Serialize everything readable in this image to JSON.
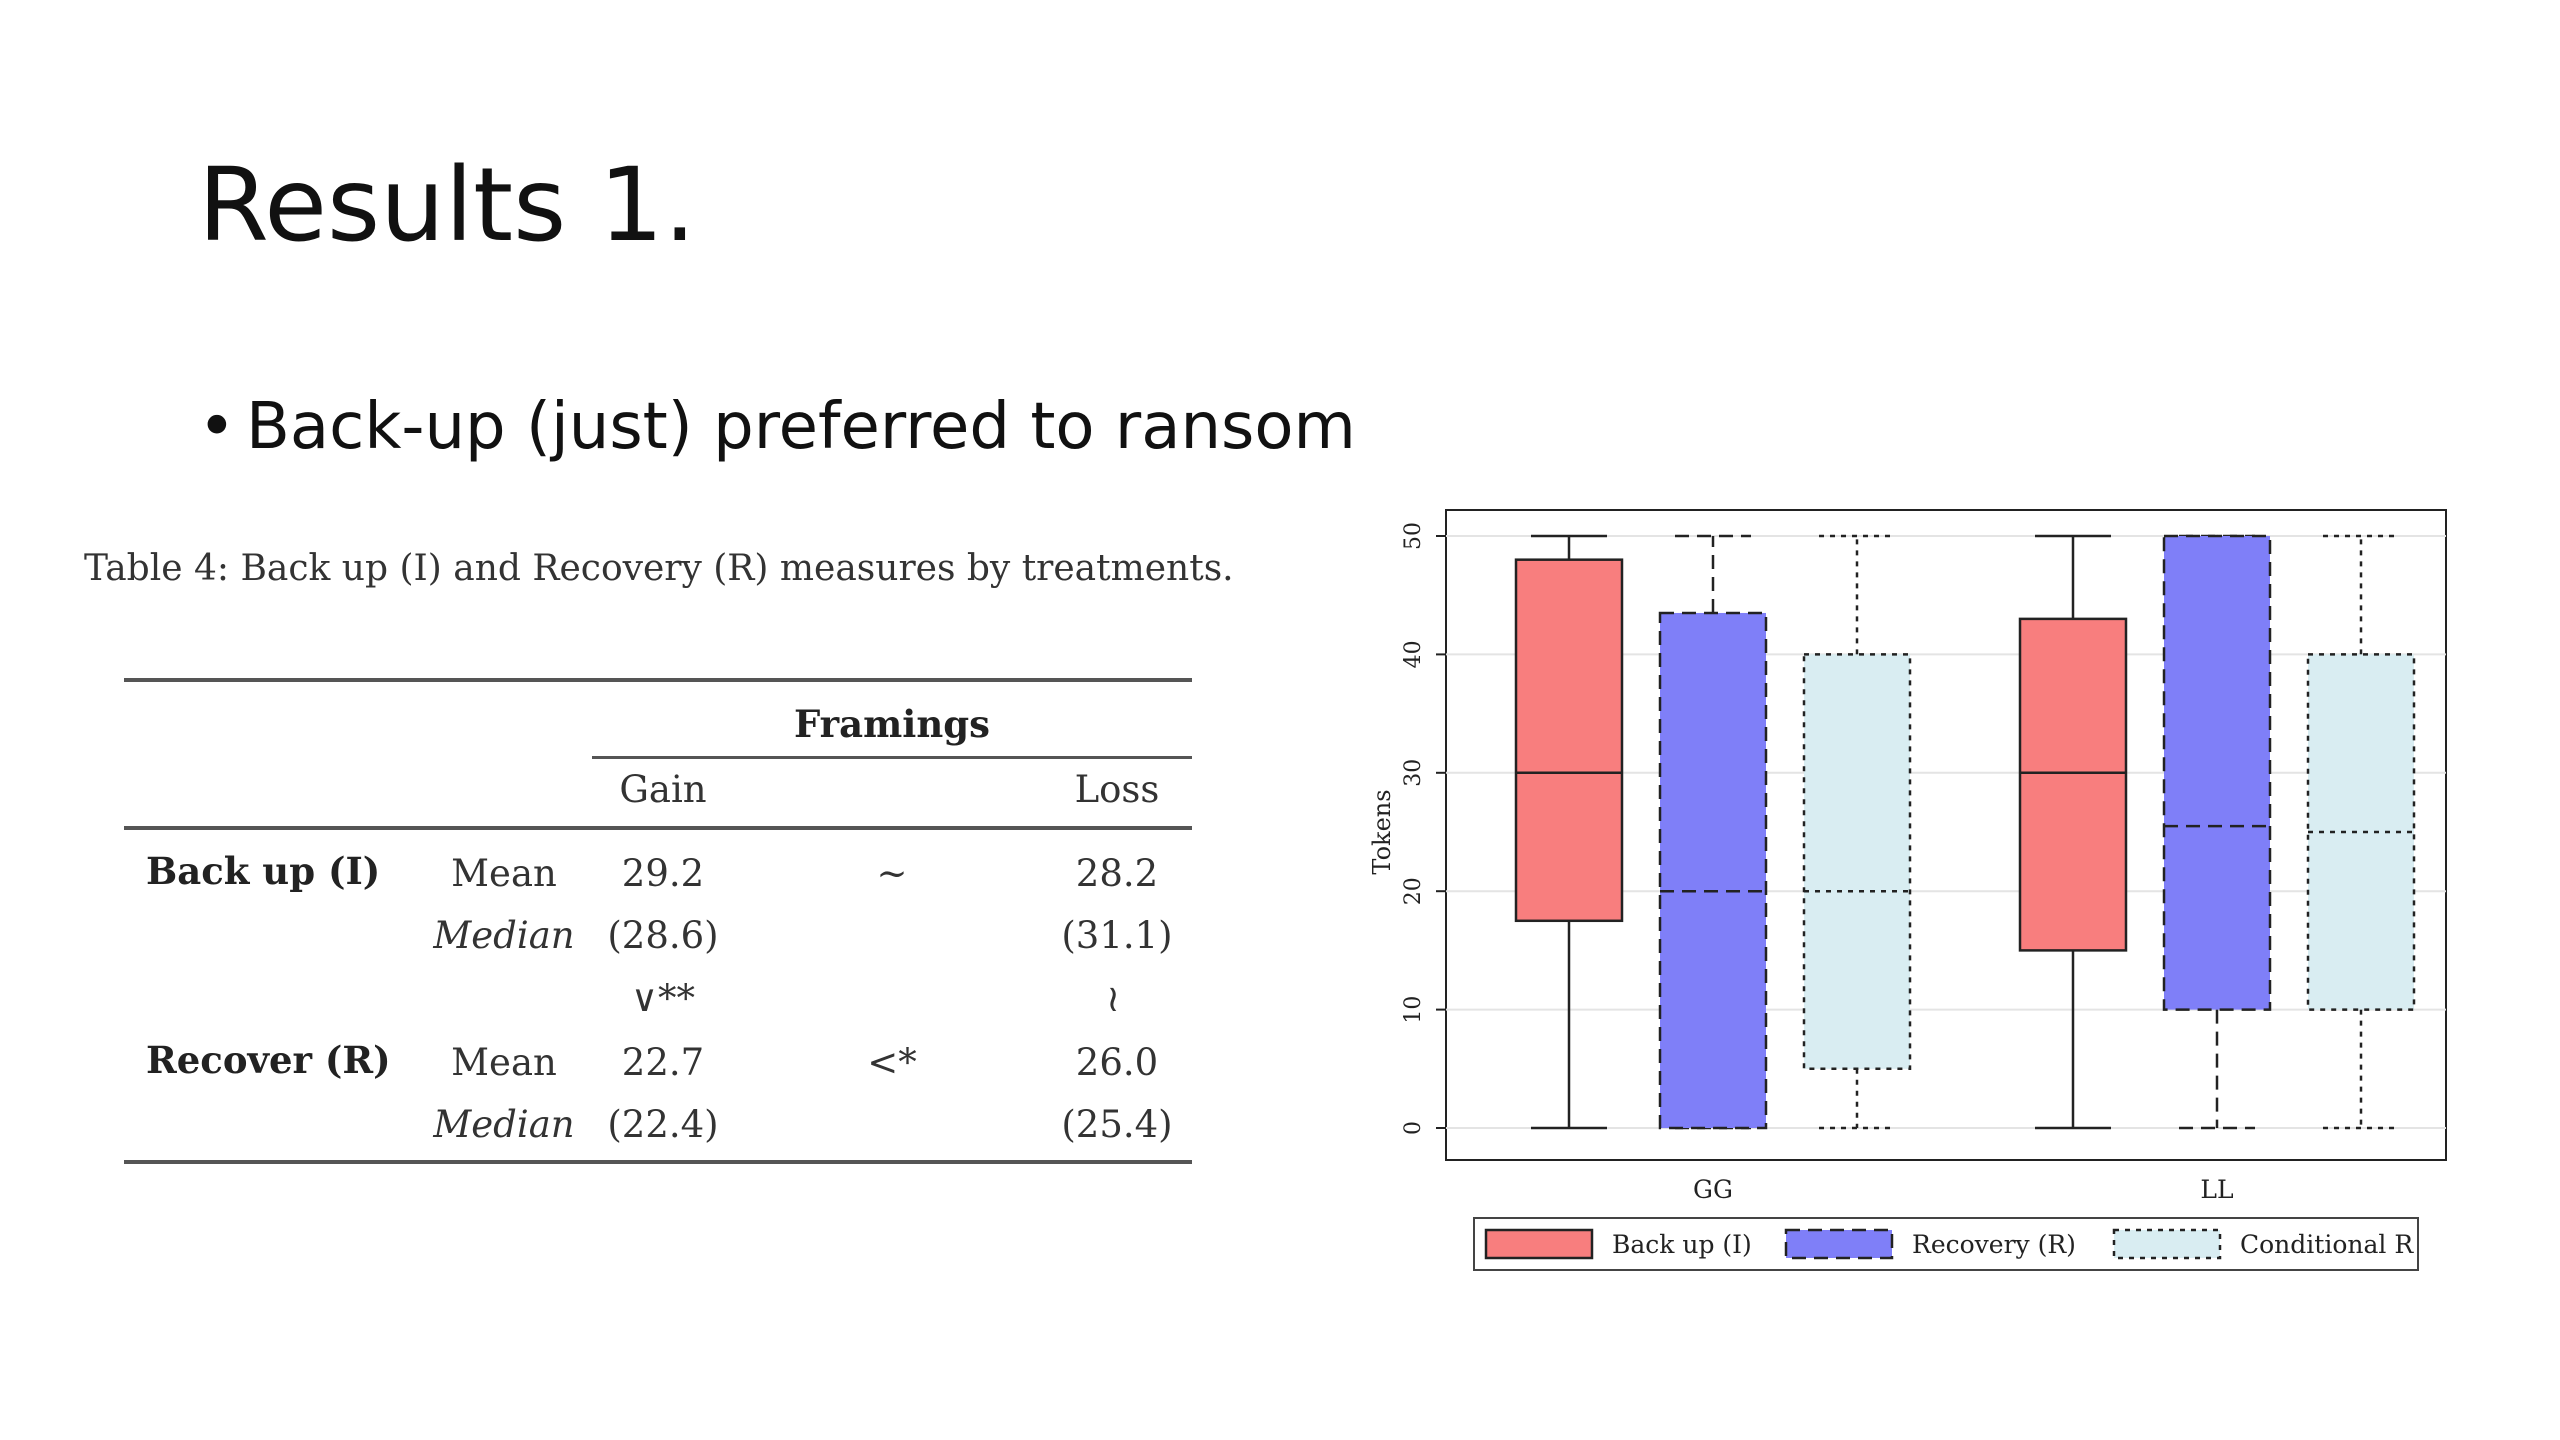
{
  "slide": {
    "title": "Results 1.",
    "bullet": "Back-up (just) preferred to ransom"
  },
  "table": {
    "caption": "Table 4: Back up (I) and Recovery (R) measures by treatments.",
    "group_header": "Framings",
    "columns": [
      "Gain",
      "Loss"
    ],
    "rows": [
      {
        "label": "Back up (I)",
        "stat": "Mean",
        "gain": "29.2",
        "relation": "~",
        "loss": "28.2"
      },
      {
        "label": "",
        "stat": "Median",
        "gain": "(28.6)",
        "relation": "",
        "loss": "(31.1)"
      },
      {
        "label": "",
        "stat": "",
        "gain": "∨**",
        "relation": "",
        "loss": "≀"
      },
      {
        "label": "Recover (R)",
        "stat": "Mean",
        "gain": "22.7",
        "relation": "<*",
        "loss": "26.0"
      },
      {
        "label": "",
        "stat": "Median",
        "gain": "(22.4)",
        "relation": "",
        "loss": "(25.4)"
      }
    ]
  },
  "chart_data": {
    "type": "box",
    "ylabel": "Tokens",
    "ylim": [
      0,
      50
    ],
    "y_ticks": [
      "0",
      "10",
      "20",
      "30",
      "40",
      "50"
    ],
    "grid": true,
    "legend_position": "bottom",
    "categories": [
      "GG",
      "LL"
    ],
    "series": [
      {
        "name": "Back up (I)",
        "color": "#f87e7e",
        "line": "solid",
        "boxes": [
          {
            "min": 0,
            "q1": 17.5,
            "median": 30,
            "q3": 48,
            "max": 50
          },
          {
            "min": 0,
            "q1": 15,
            "median": 30,
            "q3": 43,
            "max": 50
          }
        ]
      },
      {
        "name": "Recovery (R)",
        "color": "#7f7ff8",
        "line": "dashed",
        "boxes": [
          {
            "min": 0,
            "q1": 0,
            "median": 20,
            "q3": 43.5,
            "max": 50
          },
          {
            "min": 0,
            "q1": 10,
            "median": 25.5,
            "q3": 50,
            "max": 50
          }
        ]
      },
      {
        "name": "Conditional R",
        "color": "#d9edf2",
        "line": "dotted",
        "boxes": [
          {
            "min": 0,
            "q1": 5,
            "median": 20,
            "q3": 40,
            "max": 50
          },
          {
            "min": 0,
            "q1": 10,
            "median": 25,
            "q3": 40,
            "max": 50
          }
        ]
      }
    ]
  }
}
